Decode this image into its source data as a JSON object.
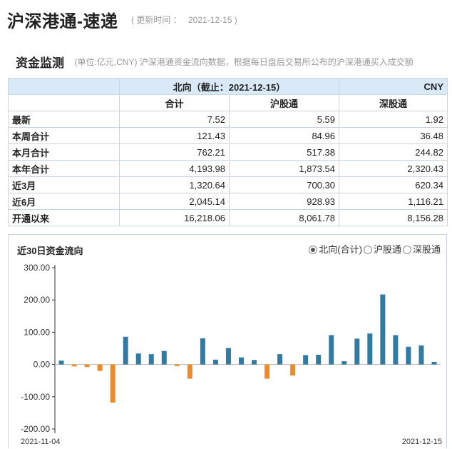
{
  "header": {
    "title": "沪深港通-速递",
    "update_open": "(",
    "update_label": "更新时间 ：",
    "update_date": "2021-12-15",
    "update_close": ")"
  },
  "section": {
    "title": "资金监测",
    "note": "(单位:亿元,CNY)  沪深港通资金流向数据，根据每日盘后交易所公布的沪深港通买入成交额"
  },
  "table": {
    "direction": "北向（截止：2021-12-15）",
    "currency": "CNY",
    "columns": [
      "合计",
      "沪股通",
      "深股通"
    ],
    "rows": [
      {
        "label": "最新",
        "values": [
          "7.52",
          "5.59",
          "1.92"
        ]
      },
      {
        "label": "本周合计",
        "values": [
          "121.43",
          "84.96",
          "36.48"
        ]
      },
      {
        "label": "本月合计",
        "values": [
          "762.21",
          "517.38",
          "244.82"
        ]
      },
      {
        "label": "本年合计",
        "values": [
          "4,193.98",
          "1,873.54",
          "2,320.43"
        ]
      },
      {
        "label": "近3月",
        "values": [
          "1,320.64",
          "700.30",
          "620.34"
        ]
      },
      {
        "label": "近6月",
        "values": [
          "2,045.14",
          "928.93",
          "1,116.21"
        ]
      },
      {
        "label": "开通以来",
        "values": [
          "16,218.06",
          "8,061.78",
          "8,156.28"
        ]
      }
    ]
  },
  "chart_section": {
    "title": "近30日资金流向",
    "radio_options": [
      {
        "label": "北向(合计)",
        "checked": true
      },
      {
        "label": "沪股通",
        "checked": false
      },
      {
        "label": "深股通",
        "checked": false
      }
    ]
  },
  "chart_data": {
    "type": "bar",
    "title": "近30日资金流向",
    "yticks": [
      "300.00",
      "200.00",
      "100.00",
      "0.00",
      "-100.00",
      "-200.00"
    ],
    "ylim": [
      -200,
      300
    ],
    "grid": false,
    "x_start_label": "2021-11-04",
    "x_end_label": "2021-12-15",
    "positive_color": "#2e7ca6",
    "negative_color": "#f08a24",
    "values": [
      12,
      -6,
      -8,
      -20,
      -118,
      86,
      34,
      32,
      42,
      -5,
      -44,
      81,
      15,
      51,
      22,
      14,
      -44,
      32,
      -34,
      29,
      30,
      91,
      10,
      80,
      96,
      217,
      91,
      55,
      59,
      8
    ]
  }
}
